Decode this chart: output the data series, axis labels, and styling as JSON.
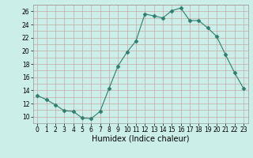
{
  "x": [
    0,
    1,
    2,
    3,
    4,
    5,
    6,
    7,
    8,
    9,
    10,
    11,
    12,
    13,
    14,
    15,
    16,
    17,
    18,
    19,
    20,
    21,
    22,
    23
  ],
  "y": [
    13.2,
    12.6,
    11.8,
    10.9,
    10.8,
    9.8,
    9.7,
    10.8,
    14.3,
    17.7,
    19.8,
    21.5,
    25.6,
    25.3,
    25.0,
    26.1,
    26.5,
    24.6,
    24.6,
    23.5,
    22.2,
    19.4,
    16.7,
    14.3
  ],
  "line_color": "#2e7d6e",
  "marker": "D",
  "marker_size": 2.5,
  "bg_color": "#cceee8",
  "grid_color": "#c8a8a8",
  "xlabel": "Humidex (Indice chaleur)",
  "xlim": [
    -0.5,
    23.5
  ],
  "ylim": [
    9,
    27
  ],
  "yticks_major": [
    10,
    12,
    14,
    16,
    18,
    20,
    22,
    24,
    26
  ],
  "yticks_minor": [
    9,
    10,
    11,
    12,
    13,
    14,
    15,
    16,
    17,
    18,
    19,
    20,
    21,
    22,
    23,
    24,
    25,
    26,
    27
  ],
  "xticks": [
    0,
    1,
    2,
    3,
    4,
    5,
    6,
    7,
    8,
    9,
    10,
    11,
    12,
    13,
    14,
    15,
    16,
    17,
    18,
    19,
    20,
    21,
    22,
    23
  ],
  "label_fontsize": 7,
  "tick_fontsize": 5.5
}
